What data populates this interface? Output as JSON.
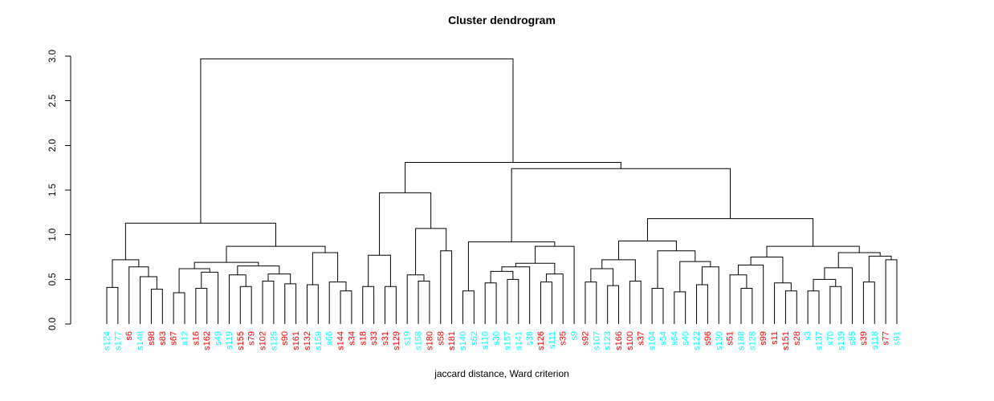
{
  "chart_data": {
    "type": "dendrogram",
    "title": "Cluster dendrogram",
    "xlabel": "jaccard distance, Ward criterion",
    "ylim": [
      0.0,
      3.0
    ],
    "yticks": [
      "0.0",
      "0.5",
      "1.0",
      "1.5",
      "2.0",
      "2.5",
      "3.0"
    ],
    "grid": false,
    "line_color": "#000000",
    "palette": {
      "c": "#00FFFF",
      "r": "#FF0000"
    },
    "leaves": [
      "s124",
      "s177",
      "s6",
      "s148",
      "s98",
      "s83",
      "s67",
      "s12",
      "s16",
      "s162",
      "s49",
      "s119",
      "s155",
      "s79",
      "s102",
      "s125",
      "s90",
      "s161",
      "s132",
      "s159",
      "s66",
      "s144",
      "s34",
      "s18",
      "s33",
      "s31",
      "s129",
      "s19",
      "s158",
      "s180",
      "s58",
      "s181",
      "s140",
      "s52",
      "s110",
      "s30",
      "s157",
      "s141",
      "s36",
      "s126",
      "s111",
      "s35",
      "s9",
      "s92",
      "s107",
      "s123",
      "s166",
      "s100",
      "s37",
      "s104",
      "s54",
      "s64",
      "s40",
      "s122",
      "s96",
      "s130",
      "s51",
      "s188",
      "s128",
      "s99",
      "s11",
      "s151",
      "s28",
      "s3",
      "s137",
      "s70",
      "s139",
      "s85",
      "s39",
      "s118",
      "s77",
      "s91"
    ],
    "leaf_colors": {
      "s124": "c",
      "s177": "c",
      "s6": "r",
      "s148": "c",
      "s98": "r",
      "s83": "r",
      "s67": "r",
      "s12": "c",
      "s16": "r",
      "s162": "r",
      "s49": "c",
      "s119": "c",
      "s155": "r",
      "s79": "r",
      "s102": "r",
      "s125": "c",
      "s90": "r",
      "s161": "r",
      "s132": "r",
      "s159": "c",
      "s66": "c",
      "s144": "r",
      "s34": "r",
      "s18": "r",
      "s33": "r",
      "s31": "r",
      "s129": "r",
      "s19": "c",
      "s158": "c",
      "s180": "r",
      "s58": "r",
      "s181": "r",
      "s140": "c",
      "s52": "c",
      "s110": "c",
      "s30": "c",
      "s157": "c",
      "s141": "c",
      "s36": "c",
      "s126": "r",
      "s111": "c",
      "s35": "r",
      "s9": "c",
      "s92": "r",
      "s107": "c",
      "s123": "c",
      "s166": "r",
      "s100": "r",
      "s37": "r",
      "s104": "c",
      "s54": "c",
      "s64": "c",
      "s40": "c",
      "s122": "c",
      "s96": "r",
      "s130": "c",
      "s51": "r",
      "s188": "c",
      "s128": "c",
      "s99": "r",
      "s11": "r",
      "s151": "r",
      "s28": "r",
      "s3": "c",
      "s137": "c",
      "s70": "c",
      "s139": "c",
      "s85": "c",
      "s39": "r",
      "s118": "c",
      "s77": "r",
      "s91": "c"
    },
    "tree": [
      2.97,
      [
        1.13,
        [
          0.72,
          [
            0.41,
            "s124",
            "s177"
          ],
          [
            0.64,
            "s6",
            [
              0.53,
              "s148",
              [
                0.39,
                "s98",
                "s83"
              ]
            ]
          ]
        ],
        [
          0.87,
          [
            0.69,
            [
              0.62,
              [
                0.35,
                "s67",
                "s12"
              ],
              [
                0.58,
                [
                  0.4,
                  "s16",
                  "s162"
                ],
                "s49"
              ]
            ],
            [
              0.65,
              [
                0.55,
                "s119",
                [
                  0.42,
                  "s155",
                  "s79"
                ]
              ],
              [
                0.56,
                [
                  0.48,
                  "s102",
                  "s125"
                ],
                [
                  0.45,
                  "s90",
                  "s161"
                ]
              ]
            ]
          ],
          [
            0.8,
            [
              0.44,
              "s132",
              "s159"
            ],
            [
              0.47,
              "s66",
              [
                0.37,
                "s144",
                "s34"
              ]
            ]
          ]
        ]
      ],
      [
        1.81,
        [
          1.47,
          [
            0.77,
            [
              0.42,
              "s18",
              "s33"
            ],
            [
              0.42,
              "s31",
              "s129"
            ]
          ],
          [
            1.07,
            [
              0.55,
              "s19",
              [
                0.48,
                "s158",
                "s180"
              ]
            ],
            [
              0.82,
              "s58",
              "s181"
            ]
          ]
        ],
        [
          1.74,
          [
            0.92,
            [
              0.37,
              "s140",
              "s52"
            ],
            [
              0.87,
              [
                0.68,
                [
                  0.64,
                  [
                    0.59,
                    [
                      0.46,
                      "s110",
                      "s30"
                    ],
                    [
                      0.5,
                      "s157",
                      "s141"
                    ]
                  ],
                  "s36"
                ],
                [
                  0.56,
                  [
                    0.47,
                    "s126",
                    "s111"
                  ],
                  "s35"
                ]
              ],
              "s9"
            ]
          ],
          [
            1.18,
            [
              0.93,
              [
                0.72,
                [
                  0.62,
                  [
                    0.47,
                    "s92",
                    "s107"
                  ],
                  [
                    0.43,
                    "s123",
                    "s166"
                  ]
                ],
                [
                  0.48,
                  "s100",
                  "s37"
                ]
              ],
              [
                0.82,
                [
                  0.4,
                  "s104",
                  "s54"
                ],
                [
                  0.7,
                  [
                    0.36,
                    "s64",
                    "s40"
                  ],
                  [
                    0.64,
                    [
                      0.44,
                      "s122",
                      "s96"
                    ],
                    "s130"
                  ]
                ]
              ]
            ],
            [
              0.87,
              [
                0.75,
                [
                  0.66,
                  [
                    0.55,
                    "s51",
                    [
                      0.4,
                      "s188",
                      "s128"
                    ]
                  ],
                  "s99"
                ],
                [
                  0.46,
                  "s11",
                  [
                    0.37,
                    "s151",
                    "s28"
                  ]
                ]
              ],
              [
                0.8,
                [
                  0.63,
                  [
                    0.5,
                    [
                      0.37,
                      "s3",
                      "s137"
                    ],
                    [
                      0.42,
                      "s70",
                      "s139"
                    ]
                  ],
                  "s85"
                ],
                [
                  0.76,
                  [
                    0.47,
                    "s39",
                    "s118"
                  ],
                  [
                    0.72,
                    "s77",
                    "s91"
                  ]
                ]
              ]
            ]
          ]
        ]
      ]
    ]
  }
}
